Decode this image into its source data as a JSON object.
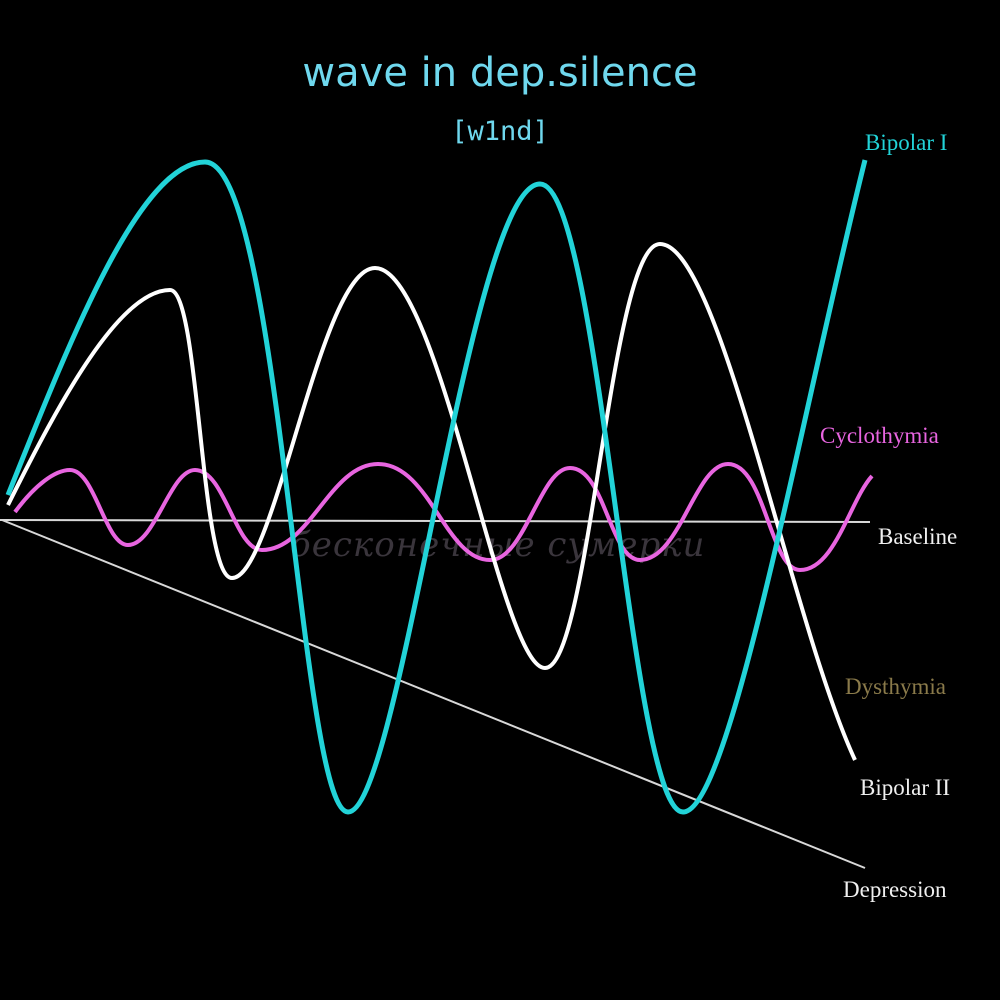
{
  "cover": {
    "title": "wave in dep.silence",
    "artist": "[w1nd]",
    "watermark": "бесконечные сумерки"
  },
  "diagram": {
    "labels": {
      "bipolar_1": "Bipolar I",
      "cyclothymia": "Cyclothymia",
      "baseline": "Baseline",
      "dysthymia": "Dysthymia",
      "bipolar_2": "Bipolar II",
      "depression": "Depression"
    },
    "colors": {
      "bipolar_1": "#22d3d8",
      "bipolar_2": "#ffffff",
      "cyclothymia": "#e865e0",
      "baseline": "#d8d8d8",
      "dysthymia": "#8a7a4a",
      "title": "#6fd8ee"
    }
  }
}
